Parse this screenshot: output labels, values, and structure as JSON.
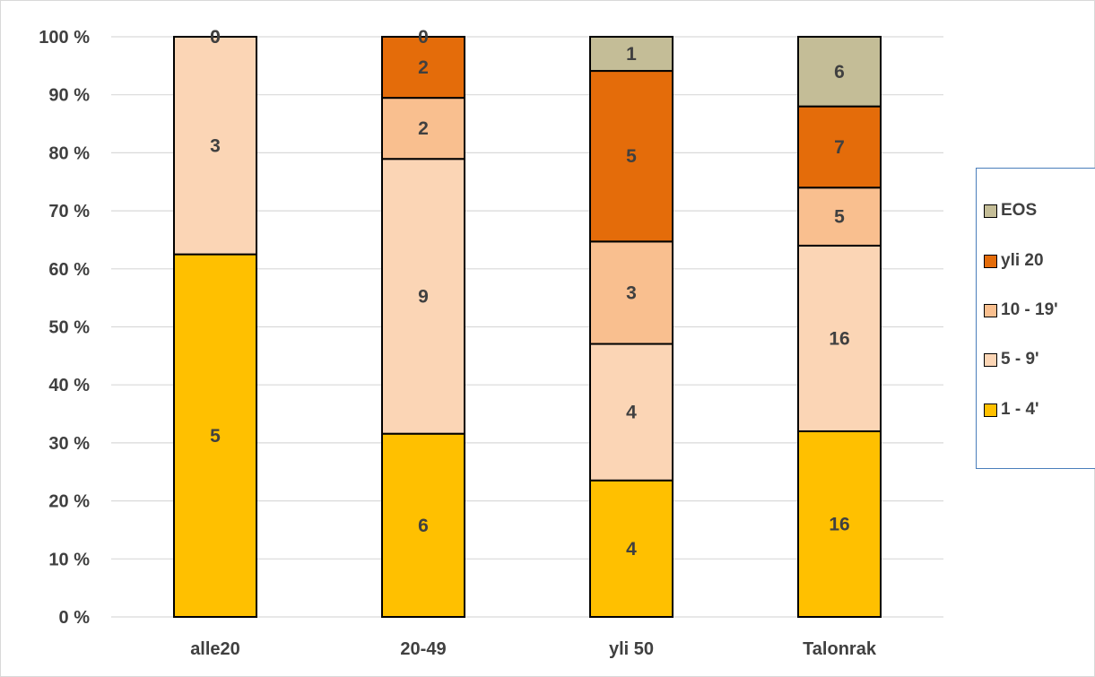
{
  "chart_data": {
    "type": "bar",
    "stacked": "percent",
    "categories": [
      "alle20",
      "20-49",
      "yli 50",
      "Talonrak"
    ],
    "series": [
      {
        "name": "1 - 4'",
        "color": "#ffc000",
        "values": [
          5,
          6,
          4,
          16
        ]
      },
      {
        "name": "5 - 9'",
        "color": "#fbd5b5",
        "values": [
          3,
          9,
          4,
          16
        ]
      },
      {
        "name": "10 - 19'",
        "color": "#f9bf8f",
        "values": [
          0,
          2,
          3,
          5
        ]
      },
      {
        "name": "yli 20",
        "color": "#e46c0a",
        "values": [
          0,
          2,
          5,
          7
        ]
      },
      {
        "name": "EOS",
        "color": "#c4bd97",
        "values": [
          0,
          0,
          1,
          6
        ]
      }
    ],
    "shown_labels": [
      [
        "5",
        "6",
        "4",
        "16"
      ],
      [
        "3",
        "9",
        "4",
        "16"
      ],
      [
        "0",
        "2",
        "3",
        "5"
      ],
      [
        "0",
        "2",
        "5",
        "7"
      ],
      [
        "",
        "0",
        "1",
        "6"
      ]
    ],
    "yticks": [
      "0 %",
      "10 %",
      "20 %",
      "30 %",
      "40 %",
      "50 %",
      "60 %",
      "70 %",
      "80 %",
      "90 %",
      "100 %"
    ],
    "ylim": [
      0,
      100
    ],
    "grid": true,
    "legend_position": "right",
    "legend_order": [
      "EOS",
      "yli 20",
      "10 - 19'",
      "5 - 9'",
      "1 - 4'"
    ],
    "title": "",
    "xlabel": "",
    "ylabel": ""
  }
}
